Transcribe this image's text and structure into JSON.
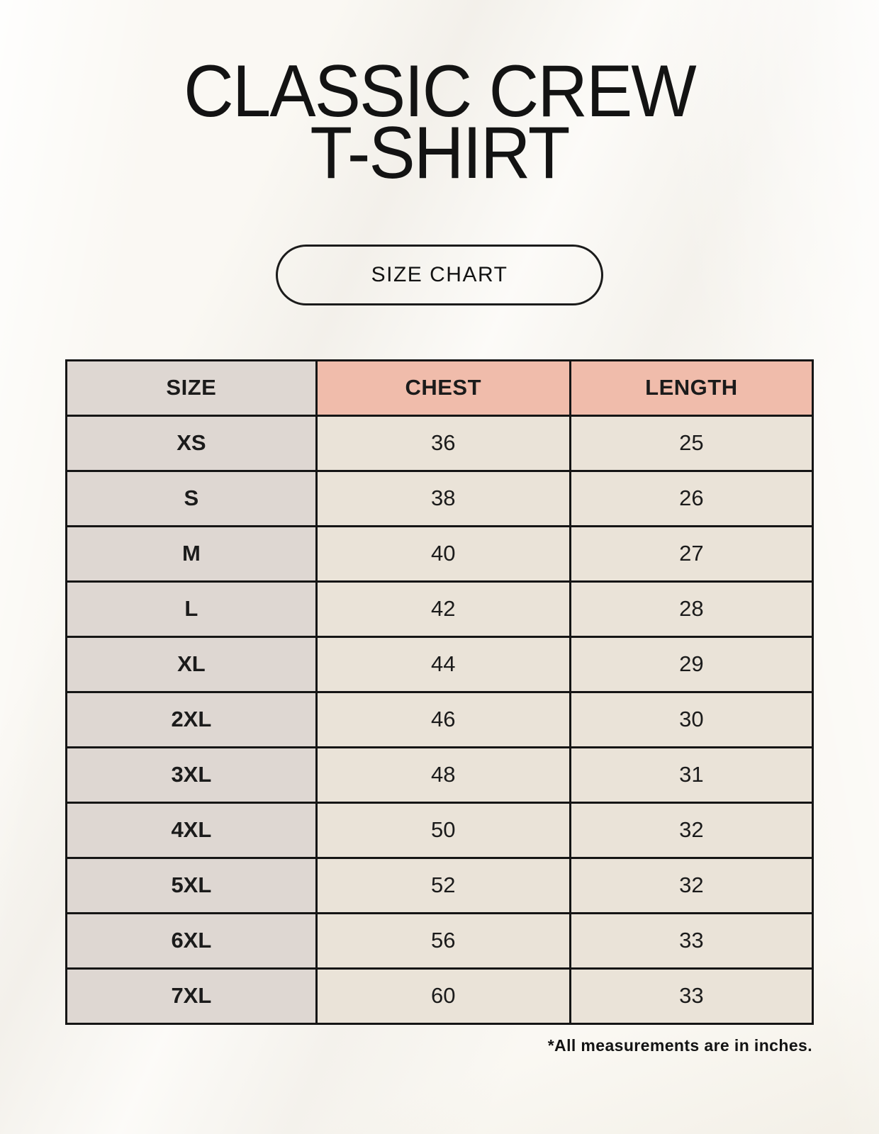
{
  "header": {
    "title_line1": "CLASSIC CREW",
    "title_line2": "T-SHIRT",
    "button_label": "SIZE CHART"
  },
  "footnote": "*All measurements are in inches.",
  "colors": {
    "page_background": "#f8f5ed",
    "size_column_bg": "#ded7d2",
    "accent_header_bg": "#f0bcab",
    "data_cell_bg": "#eae3d8",
    "table_border": "#151515",
    "text": "#1b1b1b"
  },
  "chart_data": {
    "type": "table",
    "title": "CLASSIC CREW T-SHIRT — SIZE CHART",
    "columns": [
      "SIZE",
      "CHEST",
      "LENGTH"
    ],
    "rows": [
      [
        "XS",
        "36",
        "25"
      ],
      [
        "S",
        "38",
        "26"
      ],
      [
        "M",
        "40",
        "27"
      ],
      [
        "L",
        "42",
        "28"
      ],
      [
        "XL",
        "44",
        "29"
      ],
      [
        "2XL",
        "46",
        "30"
      ],
      [
        "3XL",
        "48",
        "31"
      ],
      [
        "4XL",
        "50",
        "32"
      ],
      [
        "5XL",
        "52",
        "32"
      ],
      [
        "6XL",
        "56",
        "33"
      ],
      [
        "7XL",
        "60",
        "33"
      ]
    ],
    "units": "inches",
    "note": "*All measurements are in inches."
  }
}
